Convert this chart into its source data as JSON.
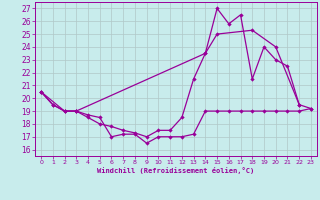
{
  "xlabel": "Windchill (Refroidissement éolien,°C)",
  "bg_color": "#c8ecec",
  "line_color": "#990099",
  "grid_color": "#b0c8c8",
  "xlim": [
    -0.5,
    23.5
  ],
  "ylim": [
    15.5,
    27.5
  ],
  "xticks": [
    0,
    1,
    2,
    3,
    4,
    5,
    6,
    7,
    8,
    9,
    10,
    11,
    12,
    13,
    14,
    15,
    16,
    17,
    18,
    19,
    20,
    21,
    22,
    23
  ],
  "yticks": [
    16,
    17,
    18,
    19,
    20,
    21,
    22,
    23,
    24,
    25,
    26,
    27
  ],
  "line1_x": [
    0,
    1,
    2,
    3,
    4,
    5,
    6,
    7,
    8,
    9,
    10,
    11,
    12,
    13,
    14,
    15,
    16,
    17,
    18,
    19,
    20,
    21,
    22,
    23
  ],
  "line1_y": [
    20.5,
    19.5,
    19.0,
    19.0,
    18.7,
    18.5,
    17.0,
    17.2,
    17.2,
    16.5,
    17.0,
    17.0,
    17.0,
    17.2,
    19.0,
    19.0,
    19.0,
    19.0,
    19.0,
    19.0,
    19.0,
    19.0,
    19.0,
    19.2
  ],
  "line2_x": [
    0,
    1,
    2,
    3,
    4,
    5,
    6,
    7,
    8,
    9,
    10,
    11,
    12,
    13,
    14,
    15,
    16,
    17,
    18,
    19,
    20,
    21,
    22
  ],
  "line2_y": [
    20.5,
    19.5,
    19.0,
    19.0,
    18.5,
    18.0,
    17.8,
    17.5,
    17.3,
    17.0,
    17.5,
    17.5,
    18.5,
    21.5,
    23.5,
    27.0,
    25.8,
    26.5,
    21.5,
    24.0,
    23.0,
    22.5,
    19.5
  ],
  "line3_x": [
    0,
    2,
    3,
    14,
    15,
    18,
    20,
    22,
    23
  ],
  "line3_y": [
    20.5,
    19.0,
    19.0,
    23.5,
    25.0,
    25.3,
    24.0,
    19.5,
    19.2
  ]
}
